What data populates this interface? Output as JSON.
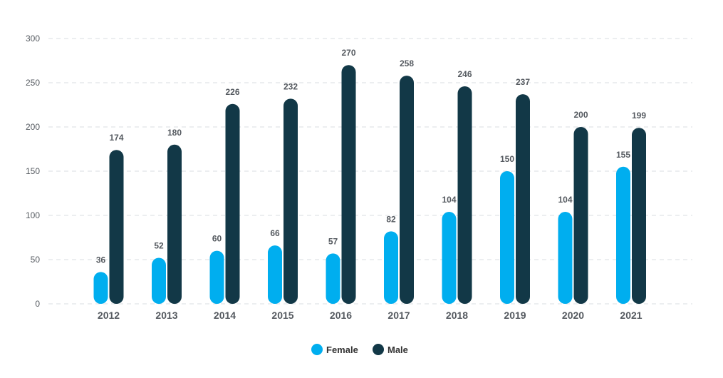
{
  "chart_data": {
    "type": "bar",
    "categories": [
      "2012",
      "2013",
      "2014",
      "2015",
      "2016",
      "2017",
      "2018",
      "2019",
      "2020",
      "2021"
    ],
    "series": [
      {
        "name": "Female",
        "color": "#00aeef",
        "values": [
          36,
          52,
          60,
          66,
          57,
          82,
          104,
          150,
          104,
          155
        ]
      },
      {
        "name": "Male",
        "color": "#123847",
        "values": [
          174,
          180,
          226,
          232,
          270,
          258,
          246,
          237,
          200,
          199
        ]
      }
    ],
    "ylim": [
      0,
      300
    ],
    "yticks": [
      0,
      50,
      100,
      150,
      200,
      250,
      300
    ],
    "grid": true,
    "legend": "bottom-center"
  }
}
